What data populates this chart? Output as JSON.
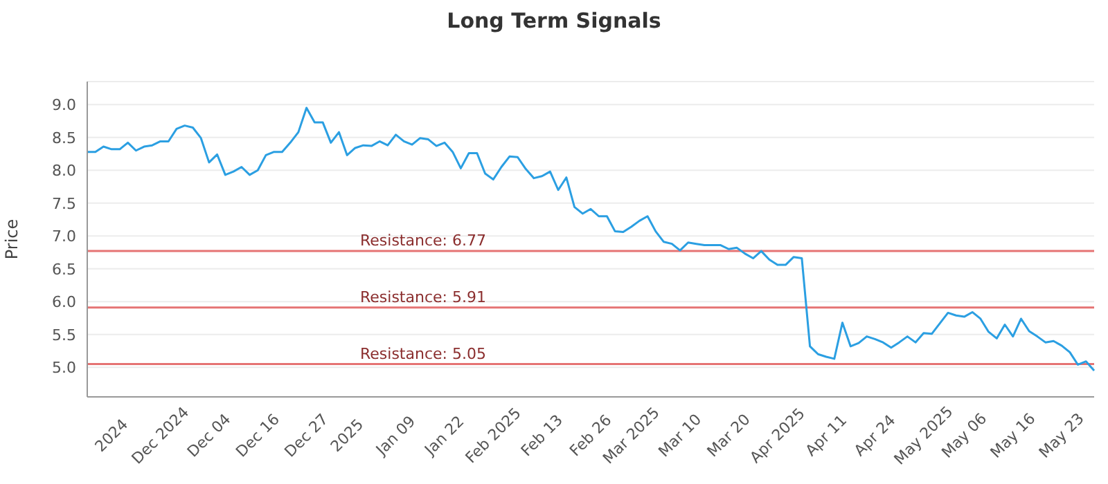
{
  "chart_data": {
    "type": "line",
    "title": "Long Term Signals",
    "ylabel": "Price",
    "categories": [
      null,
      null,
      null,
      "2024",
      null,
      null,
      null,
      null,
      null,
      "Dec 2024",
      null,
      null,
      null,
      null,
      null,
      "Dec 04",
      null,
      null,
      null,
      null,
      null,
      "Dec 16",
      null,
      null,
      null,
      null,
      null,
      "Dec 27",
      null,
      null,
      null,
      null,
      "2025",
      null,
      null,
      null,
      null,
      null,
      "Jan 09",
      null,
      null,
      null,
      null,
      null,
      "Jan 22",
      null,
      null,
      null,
      null,
      null,
      "Feb 2025",
      null,
      null,
      null,
      null,
      null,
      "Feb 13",
      null,
      null,
      null,
      null,
      null,
      "Feb 26",
      null,
      null,
      null,
      null,
      "Mar 2025",
      null,
      null,
      null,
      null,
      null,
      "Mar 10",
      null,
      null,
      null,
      null,
      null,
      "Mar 20",
      null,
      null,
      null,
      null,
      null,
      "Apr 2025",
      null,
      null,
      null,
      null,
      null,
      "Apr 11",
      null,
      null,
      null,
      null,
      null,
      "Apr 24",
      null,
      null,
      null,
      null,
      null,
      "May 2025",
      null,
      null,
      null,
      null,
      "May 06",
      null,
      null,
      null,
      null,
      null,
      "May 16",
      null,
      null,
      null,
      null,
      null,
      "May 23",
      null,
      null,
      null,
      null
    ],
    "series": [
      {
        "color": "#2b9fe2",
        "values": [
          8.28,
          8.28,
          8.36,
          8.32,
          8.32,
          8.42,
          8.3,
          8.36,
          8.38,
          8.44,
          8.44,
          8.63,
          8.68,
          8.65,
          8.49,
          8.12,
          8.24,
          7.93,
          7.98,
          8.05,
          7.93,
          8.0,
          8.23,
          8.28,
          8.28,
          8.42,
          8.58,
          8.95,
          8.73,
          8.73,
          8.42,
          8.58,
          8.23,
          8.34,
          8.38,
          8.37,
          8.44,
          8.38,
          8.54,
          8.44,
          8.39,
          8.49,
          8.47,
          8.37,
          8.42,
          8.28,
          8.03,
          8.26,
          8.26,
          7.95,
          7.86,
          8.05,
          8.21,
          8.2,
          8.02,
          7.88,
          7.91,
          7.98,
          7.7,
          7.89,
          7.44,
          7.34,
          7.41,
          7.3,
          7.3,
          7.07,
          7.06,
          7.14,
          7.23,
          7.3,
          7.07,
          6.91,
          6.88,
          6.78,
          6.9,
          6.88,
          6.86,
          6.86,
          6.86,
          6.8,
          6.82,
          6.73,
          6.66,
          6.77,
          6.64,
          6.56,
          6.56,
          6.68,
          6.66,
          5.32,
          5.2,
          5.16,
          5.13,
          5.68,
          5.32,
          5.37,
          5.47,
          5.43,
          5.38,
          5.3,
          5.38,
          5.47,
          5.38,
          5.52,
          5.51,
          5.67,
          5.83,
          5.79,
          5.77,
          5.84,
          5.74,
          5.54,
          5.44,
          5.65,
          5.47,
          5.74,
          5.55,
          5.47,
          5.38,
          5.4,
          5.33,
          5.23,
          5.04,
          5.09,
          4.95
        ]
      }
    ],
    "ylim": [
      4.55,
      9.35
    ],
    "yticks": [
      {
        "value": 5,
        "label": "5.0"
      },
      5.5,
      {
        "value": 6,
        "label": "6.0"
      },
      6.5,
      {
        "value": 7,
        "label": "7.0"
      },
      7.5,
      {
        "value": 8,
        "label": "8.0"
      },
      8.5,
      {
        "value": 9,
        "label": "9.0"
      }
    ],
    "grid": "y",
    "line_style": "solid",
    "marker": "none",
    "ref_lines": [
      {
        "axis": "y",
        "value": 6.77,
        "label": "Resistance: 6.77",
        "color": "#e57373"
      },
      {
        "axis": "y",
        "value": 5.91,
        "label": "Resistance: 5.91",
        "color": "#e57373"
      },
      {
        "axis": "y",
        "value": 5.05,
        "label": "Resistance: 5.05",
        "color": "#e57373"
      }
    ]
  }
}
